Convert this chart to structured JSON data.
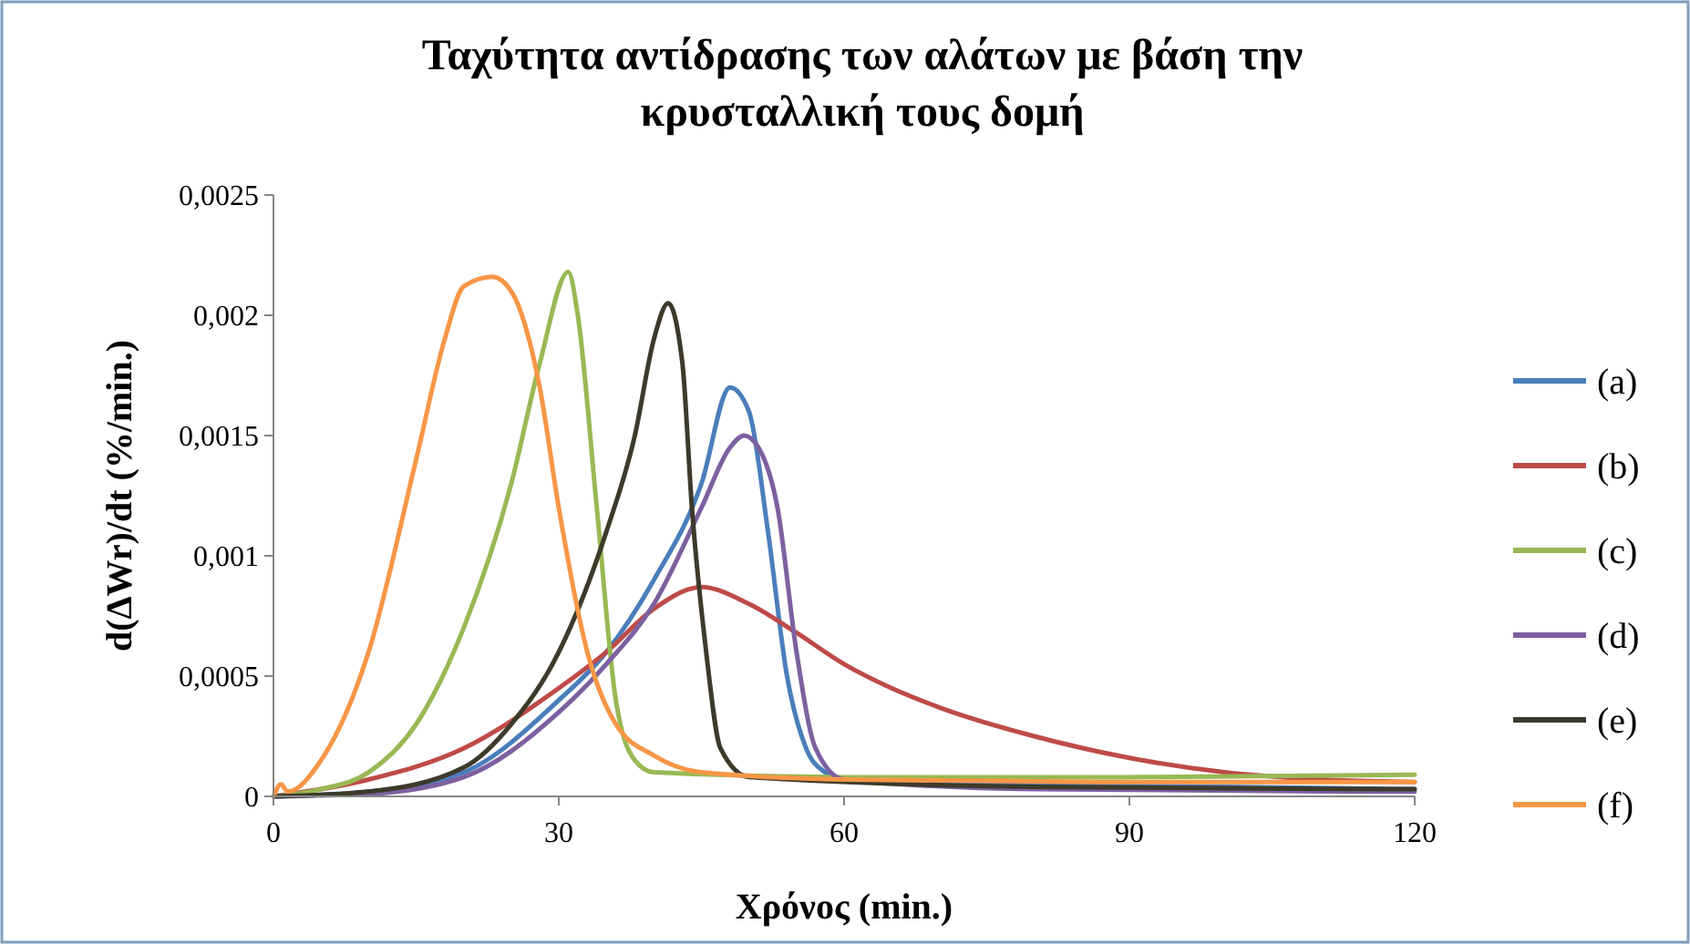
{
  "chart_data": {
    "type": "line",
    "title": "Ταχύτητα αντίδρασης των αλάτων με βάση την κρυσταλλική τους δομή",
    "xlabel": "Χρόνος (min.)",
    "ylabel": "d(ΔWr)/dt (%/min.)",
    "xlim": [
      0,
      120
    ],
    "xticks": [
      0,
      30,
      60,
      90,
      120
    ],
    "ylim": [
      0,
      0.0025
    ],
    "yticks": [
      {
        "value": 0,
        "label": "0"
      },
      {
        "value": 0.0005,
        "label": "0,0005"
      },
      {
        "value": 0.001,
        "label": "0,001"
      },
      {
        "value": 0.0015,
        "label": "0,0015"
      },
      {
        "value": 0.002,
        "label": "0,002"
      },
      {
        "value": 0.0025,
        "label": "0,0025"
      }
    ],
    "grid": false,
    "legend": "right",
    "marker": "none",
    "line_style": "solid",
    "series": [
      {
        "name": "(a)",
        "color": "#4a7ebb",
        "x": [
          0,
          10,
          20,
          30,
          35,
          40,
          45,
          48,
          50,
          52,
          54,
          56,
          58,
          60,
          80,
          100,
          120
        ],
        "values": [
          0,
          2e-05,
          0.0001,
          0.0004,
          0.0006,
          0.0009,
          0.0013,
          0.0017,
          0.0016,
          0.0011,
          0.0005,
          0.0002,
          0.0001,
          7e-05,
          5e-05,
          4e-05,
          3e-05
        ]
      },
      {
        "name": "(b)",
        "color": "#be4b48",
        "x": [
          0,
          10,
          20,
          30,
          35,
          40,
          45,
          50,
          55,
          60,
          65,
          70,
          80,
          90,
          100,
          110,
          120
        ],
        "values": [
          0,
          7e-05,
          0.0002,
          0.00045,
          0.0006,
          0.00078,
          0.00087,
          0.0008,
          0.00068,
          0.00055,
          0.00045,
          0.00037,
          0.00025,
          0.00016,
          0.0001,
          7e-05,
          6e-05
        ]
      },
      {
        "name": "(c)",
        "color": "#98b954",
        "x": [
          0,
          5,
          10,
          15,
          20,
          25,
          28,
          31,
          32,
          34,
          36,
          38,
          40,
          60,
          90,
          120
        ],
        "values": [
          0,
          3e-05,
          0.0001,
          0.0003,
          0.0007,
          0.0013,
          0.0018,
          0.00218,
          0.002,
          0.0012,
          0.0004,
          0.00015,
          0.0001,
          8e-05,
          8e-05,
          9e-05
        ]
      },
      {
        "name": "(d)",
        "color": "#7d60a0",
        "x": [
          0,
          10,
          20,
          30,
          35,
          40,
          45,
          48,
          49.5,
          51,
          53,
          55,
          57,
          60,
          80,
          120
        ],
        "values": [
          0,
          1e-05,
          8e-05,
          0.00035,
          0.00055,
          0.0008,
          0.0012,
          0.00145,
          0.0015,
          0.00145,
          0.0012,
          0.0006,
          0.0002,
          7e-05,
          3e-05,
          2e-05
        ]
      },
      {
        "name": "(e)",
        "color": "#3d3a2a",
        "x": [
          0,
          10,
          20,
          25,
          30,
          35,
          38,
          40,
          41.5,
          43,
          44,
          45.5,
          47,
          50,
          80,
          120
        ],
        "values": [
          0,
          2e-05,
          0.00012,
          0.0003,
          0.0006,
          0.0011,
          0.0015,
          0.0019,
          0.00205,
          0.0018,
          0.0012,
          0.0006,
          0.0002,
          8e-05,
          4e-05,
          3e-05
        ]
      },
      {
        "name": "(f)",
        "color": "#f79646",
        "x": [
          0,
          0.8,
          1.5,
          5,
          10,
          15,
          18,
          20,
          23,
          25,
          28,
          30,
          33,
          36,
          40,
          45,
          60,
          90,
          120
        ],
        "values": [
          0,
          5e-05,
          2e-05,
          0.00015,
          0.0006,
          0.0014,
          0.0019,
          0.00212,
          0.00216,
          0.0021,
          0.0017,
          0.0012,
          0.0006,
          0.0003,
          0.00017,
          0.0001,
          7e-05,
          6e-05,
          6e-05
        ]
      }
    ]
  }
}
